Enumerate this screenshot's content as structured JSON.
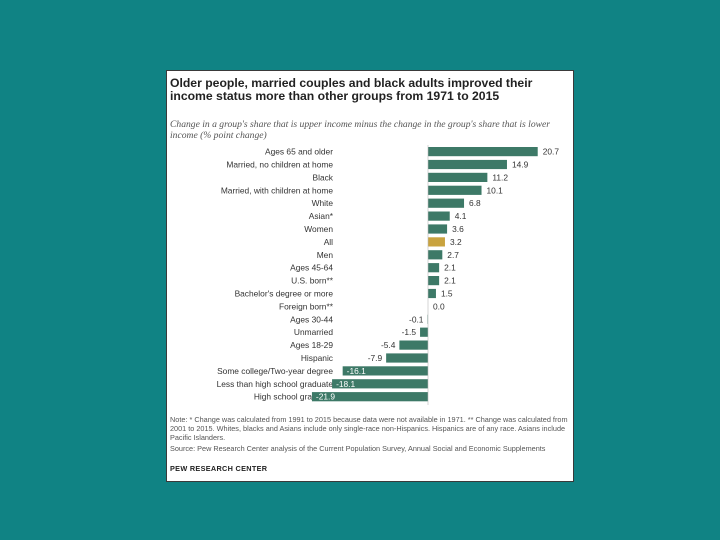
{
  "chart_data": {
    "type": "bar",
    "orientation": "horizontal",
    "title": "Older people, married couples and black adults improved their income status more than other groups from 1971 to 2015",
    "subtitle": "Change in a group's share that is upper income minus the change in the group's share that is lower income (% point change)",
    "categories": [
      "Ages 65 and older",
      "Married, no children at home",
      "Black",
      "Married, with children at home",
      "White",
      "Asian*",
      "Women",
      "All",
      "Men",
      "Ages 45-64",
      "U.S. born**",
      "Bachelor's degree or more",
      "Foreign born**",
      "Ages 30-44",
      "Unmarried",
      "Ages 18-29",
      "Hispanic",
      "Some college/Two-year degree",
      "Less than high school graduate",
      "High school graduate"
    ],
    "values": [
      20.7,
      14.9,
      11.2,
      10.1,
      6.8,
      4.1,
      3.6,
      3.2,
      2.7,
      2.1,
      2.1,
      1.5,
      0.0,
      -0.1,
      -1.5,
      -5.4,
      -7.9,
      -16.1,
      -18.1,
      -21.9
    ],
    "value_labels": [
      "20.7",
      "14.9",
      "11.2",
      "10.1",
      "6.8",
      "4.1",
      "3.6",
      "3.2",
      "2.7",
      "2.1",
      "2.1",
      "1.5",
      "0.0",
      "-0.1",
      "-1.5",
      "-5.4",
      "-7.9",
      "-16.1",
      "-18.1",
      "-21.9"
    ],
    "highlight_category": "All",
    "colors": {
      "bar": "#3d7967",
      "highlight": "#c9a33f"
    }
  },
  "note": "Note: * Change was calculated from 1991 to 2015 because data were not available in 1971. ** Change was calculated from 2001 to 2015. Whites, blacks and Asians include only single-race non-Hispanics. Hispanics are of any race. Asians include Pacific Islanders.",
  "source": "Source: Pew Research Center analysis of the Current Population Survey, Annual Social and Economic Supplements",
  "brand": "PEW RESEARCH CENTER",
  "colors": {
    "background": "#108384",
    "card": "#ffffff"
  }
}
